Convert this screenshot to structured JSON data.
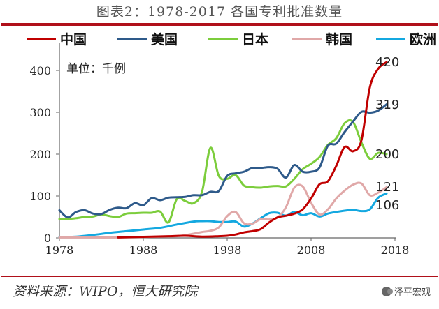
{
  "header": {
    "title": "图表2：1978-2017 各国专利批准数量"
  },
  "footer": {
    "source": "资料来源：WIPO，恒大研究院",
    "watermark": "泽平宏观"
  },
  "chart_data": {
    "type": "line",
    "title": "图表2：1978-2017 各国专利批准数量",
    "unit_label": "单位：千例",
    "xlabel": "",
    "ylabel": "",
    "xlim": [
      1978,
      2018
    ],
    "ylim": [
      0,
      450
    ],
    "x_ticks": [
      "1978",
      "1988",
      "1998",
      "2008",
      "2018"
    ],
    "y_ticks": [
      "0",
      "100",
      "200",
      "300",
      "400"
    ],
    "legend_position": "top",
    "grid": false,
    "series": [
      {
        "name": "中国",
        "color": "#c00000",
        "end_label": "420",
        "x": [
          1985,
          1987,
          1989,
          1991,
          1993,
          1995,
          1997,
          1998,
          1999,
          2000,
          2001,
          2002,
          2003,
          2004,
          2005,
          2006,
          2007,
          2008,
          2009,
          2010,
          2011,
          2012,
          2013,
          2014,
          2015,
          2016,
          2017
        ],
        "y": [
          1,
          2,
          3,
          4,
          5,
          3,
          4,
          5,
          8,
          13,
          16,
          21,
          37,
          49,
          53,
          58,
          68,
          94,
          128,
          135,
          172,
          217,
          207,
          233,
          359,
          404,
          420
        ]
      },
      {
        "name": "美国",
        "color": "#2e5a8a",
        "end_label": "319",
        "x": [
          1978,
          1979,
          1980,
          1981,
          1982,
          1983,
          1984,
          1985,
          1986,
          1987,
          1988,
          1989,
          1990,
          1991,
          1992,
          1993,
          1994,
          1995,
          1996,
          1997,
          1998,
          1999,
          2000,
          2001,
          2002,
          2003,
          2004,
          2005,
          2006,
          2007,
          2008,
          2009,
          2010,
          2011,
          2012,
          2013,
          2014,
          2015,
          2016,
          2017
        ],
        "y": [
          66,
          49,
          62,
          66,
          58,
          57,
          67,
          72,
          71,
          83,
          78,
          95,
          90,
          96,
          97,
          98,
          102,
          102,
          110,
          112,
          148,
          154,
          158,
          167,
          167,
          169,
          165,
          144,
          174,
          158,
          158,
          168,
          220,
          225,
          253,
          278,
          301,
          299,
          304,
          319
        ]
      },
      {
        "name": "日本",
        "color": "#7ccd3c",
        "end_label": "200",
        "x": [
          1978,
          1979,
          1980,
          1981,
          1982,
          1983,
          1984,
          1985,
          1986,
          1987,
          1988,
          1989,
          1990,
          1991,
          1992,
          1993,
          1994,
          1995,
          1996,
          1997,
          1998,
          1999,
          2000,
          2001,
          2002,
          2003,
          2004,
          2005,
          2006,
          2007,
          2008,
          2009,
          2010,
          2011,
          2012,
          2013,
          2014,
          2015,
          2016,
          2017
        ],
        "y": [
          45,
          45,
          47,
          50,
          51,
          56,
          52,
          50,
          58,
          59,
          60,
          60,
          63,
          37,
          93,
          88,
          83,
          110,
          215,
          148,
          141,
          150,
          125,
          121,
          120,
          123,
          124,
          123,
          141,
          164,
          177,
          193,
          222,
          238,
          274,
          277,
          228,
          189,
          203,
          200
        ]
      },
      {
        "name": "韩国",
        "color": "#e0a8a8",
        "end_label": "121",
        "x": [
          1978,
          1980,
          1982,
          1984,
          1986,
          1988,
          1990,
          1992,
          1994,
          1995,
          1996,
          1997,
          1998,
          1999,
          2000,
          2001,
          2002,
          2003,
          2004,
          2005,
          2006,
          2007,
          2008,
          2009,
          2010,
          2011,
          2012,
          2013,
          2014,
          2015,
          2016,
          2017
        ],
        "y": [
          1,
          1,
          1,
          1,
          2,
          2,
          3,
          4,
          10,
          14,
          17,
          25,
          52,
          62,
          35,
          34,
          45,
          44,
          49,
          73,
          120,
          123,
          84,
          56,
          68,
          94,
          113,
          127,
          130,
          102,
          108,
          121
        ]
      },
      {
        "name": "欧洲",
        "color": "#14a8e0",
        "end_label": "106",
        "x": [
          1978,
          1980,
          1982,
          1984,
          1986,
          1988,
          1990,
          1992,
          1994,
          1995,
          1996,
          1997,
          1998,
          1999,
          2000,
          2001,
          2002,
          2003,
          2004,
          2005,
          2006,
          2007,
          2008,
          2009,
          2010,
          2011,
          2012,
          2013,
          2014,
          2015,
          2016,
          2017
        ],
        "y": [
          2,
          3,
          7,
          12,
          16,
          20,
          24,
          32,
          39,
          40,
          40,
          38,
          38,
          39,
          27,
          34,
          47,
          59,
          60,
          53,
          62,
          54,
          59,
          51,
          58,
          62,
          65,
          67,
          64,
          68,
          96,
          106
        ]
      }
    ]
  }
}
